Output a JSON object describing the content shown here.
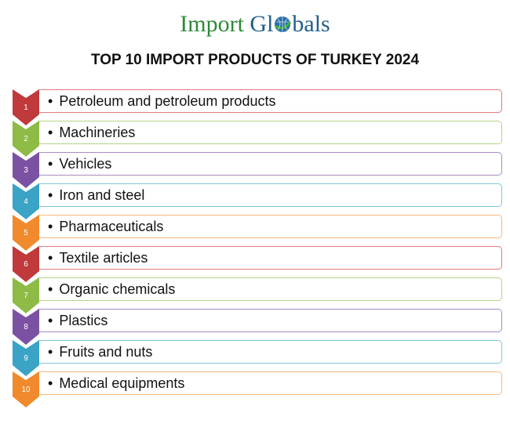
{
  "logo": {
    "part1": "Import",
    "part2": "Gl",
    "globe": "globe-icon",
    "part3": "bals"
  },
  "title": "TOP 10 IMPORT PRODUCTS OF TURKEY 2024",
  "items": [
    {
      "num": "1",
      "label": "Petroleum and petroleum products",
      "color": "#c0393b",
      "border": "#e07a7c"
    },
    {
      "num": "2",
      "label": "Machineries",
      "color": "#8dbb45",
      "border": "#b4d487"
    },
    {
      "num": "3",
      "label": "Vehicles",
      "color": "#7b52a3",
      "border": "#a68cc4"
    },
    {
      "num": "4",
      "label": "Iron and steel",
      "color": "#3aa3c6",
      "border": "#7fc4dc"
    },
    {
      "num": "5",
      "label": "Pharmaceuticals",
      "color": "#f08a2c",
      "border": "#f6b77a"
    },
    {
      "num": "6",
      "label": "Textile articles",
      "color": "#c0393b",
      "border": "#e07a7c"
    },
    {
      "num": "7",
      "label": "Organic chemicals",
      "color": "#8dbb45",
      "border": "#b4d487"
    },
    {
      "num": "8",
      "label": "Plastics",
      "color": "#7b52a3",
      "border": "#a68cc4"
    },
    {
      "num": "9",
      "label": "Fruits and nuts",
      "color": "#3aa3c6",
      "border": "#7fc4dc"
    },
    {
      "num": "10",
      "label": "Medical equipments",
      "color": "#f08a2c",
      "border": "#f6b77a"
    }
  ]
}
